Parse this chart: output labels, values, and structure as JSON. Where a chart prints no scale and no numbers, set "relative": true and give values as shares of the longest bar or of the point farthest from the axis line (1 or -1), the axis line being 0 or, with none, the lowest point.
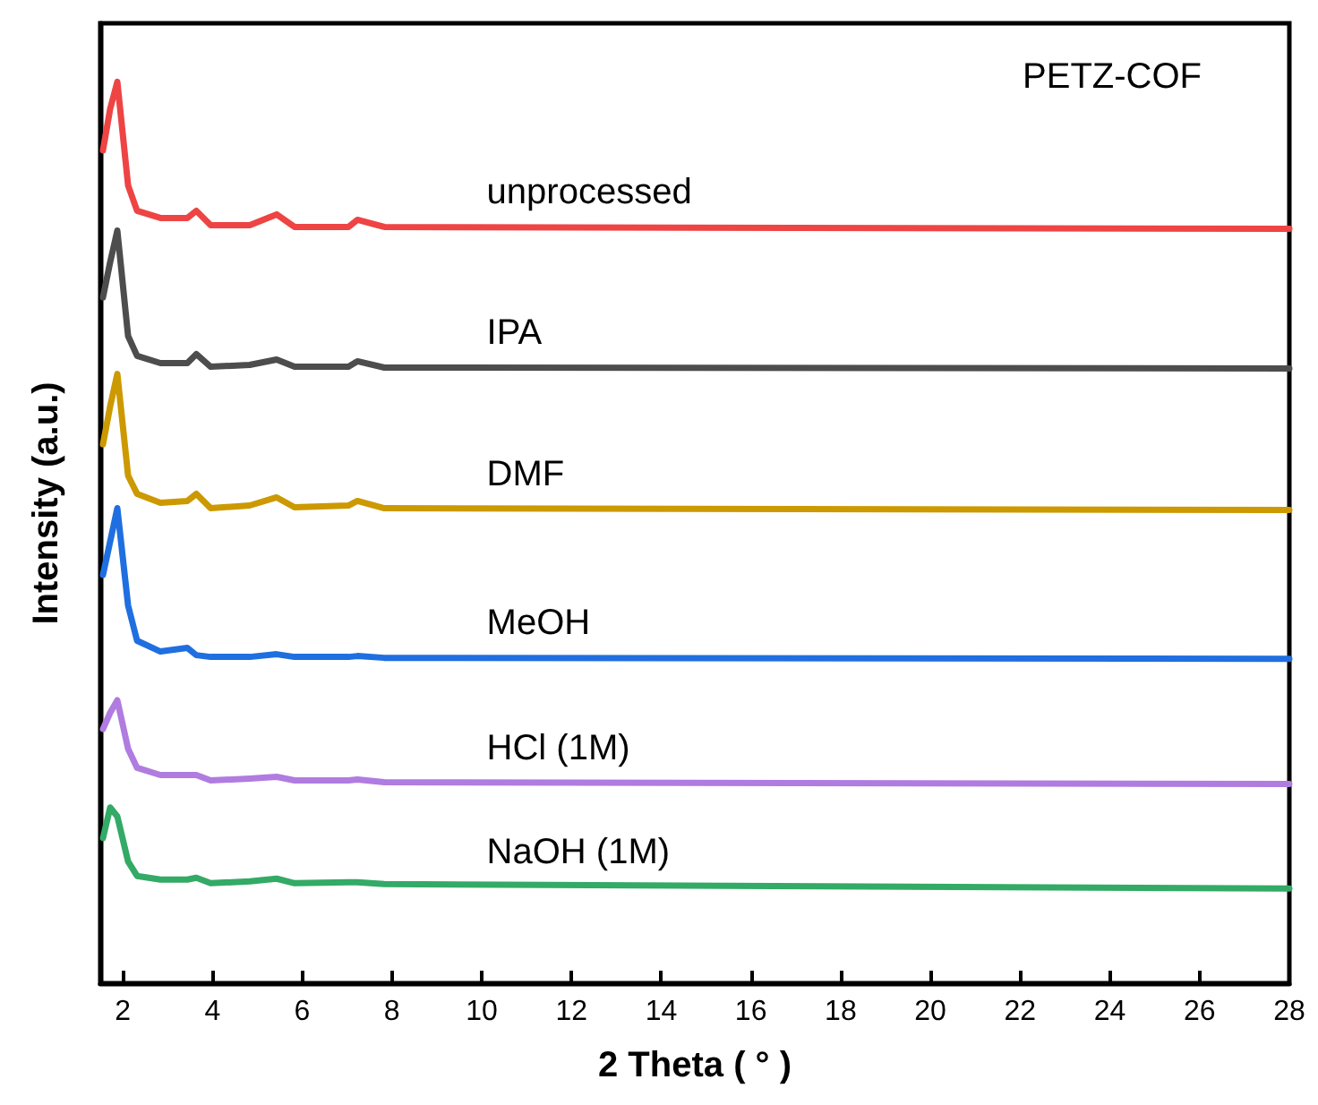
{
  "chart_data": {
    "type": "line",
    "title": "PETZ-COF",
    "xlabel": "2 Theta ( ° )",
    "ylabel": "Intensity (a.u.)",
    "relative": true,
    "x": [
      1.56,
      1.72,
      1.88,
      2.12,
      2.32,
      2.84,
      3.44,
      3.64,
      3.96,
      4.83,
      5.43,
      5.83,
      7.03,
      7.23,
      7.83,
      28
    ],
    "xlim": [
      1.5,
      28
    ],
    "xticks": [
      2,
      4,
      6,
      8,
      10,
      12,
      14,
      16,
      18,
      20,
      22,
      24,
      26,
      28
    ],
    "series": [
      {
        "name": "unprocessed",
        "color": "#ee4444",
        "values": [
          0.924,
          0.97,
          1.0,
          0.885,
          0.857,
          0.849,
          0.849,
          0.857,
          0.841,
          0.841,
          0.853,
          0.839,
          0.839,
          0.847,
          0.839,
          0.837
        ]
      },
      {
        "name": "IPA",
        "color": "#4d4d4d",
        "values": [
          0.761,
          0.8,
          0.835,
          0.718,
          0.696,
          0.688,
          0.688,
          0.698,
          0.684,
          0.686,
          0.692,
          0.684,
          0.684,
          0.69,
          0.683,
          0.682
        ]
      },
      {
        "name": "DMF",
        "color": "#cc9900",
        "values": [
          0.598,
          0.64,
          0.676,
          0.563,
          0.543,
          0.533,
          0.535,
          0.543,
          0.527,
          0.53,
          0.539,
          0.528,
          0.53,
          0.535,
          0.527,
          0.525
        ]
      },
      {
        "name": "MeOH",
        "color": "#1f6fe0",
        "values": [
          0.453,
          0.49,
          0.527,
          0.419,
          0.38,
          0.368,
          0.372,
          0.364,
          0.362,
          0.362,
          0.365,
          0.362,
          0.362,
          0.363,
          0.361,
          0.36
        ]
      },
      {
        "name": "HCl (1M)",
        "color": "#b07ce0",
        "values": [
          0.282,
          0.3,
          0.314,
          0.26,
          0.239,
          0.231,
          0.231,
          0.231,
          0.225,
          0.227,
          0.229,
          0.225,
          0.225,
          0.226,
          0.223,
          0.221
        ]
      },
      {
        "name": "NaOH (1M)",
        "color": "#33aa66",
        "values": [
          0.161,
          0.195,
          0.185,
          0.135,
          0.119,
          0.115,
          0.115,
          0.117,
          0.111,
          0.113,
          0.116,
          0.111,
          0.112,
          0.112,
          0.11,
          0.105
        ]
      }
    ],
    "marker": "none",
    "line_style": "solid",
    "grid": false,
    "legend": false
  }
}
